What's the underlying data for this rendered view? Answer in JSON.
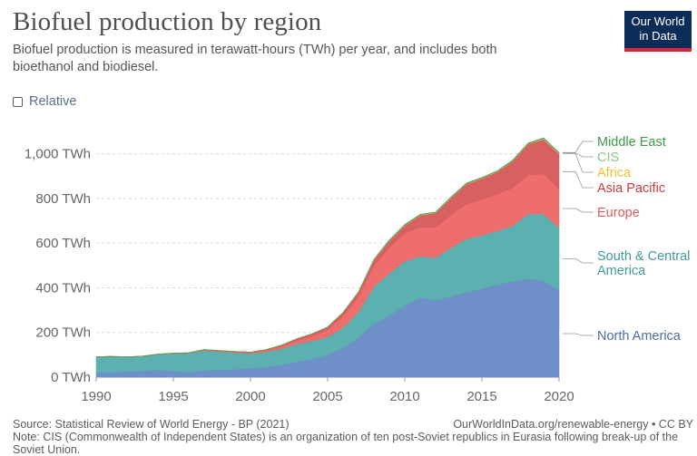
{
  "header": {
    "title": "Biofuel production by region",
    "subtitle": "Biofuel production is measured in terawatt-hours (TWh) per year, and includes both bioethanol and biodiesel."
  },
  "logo": {
    "line1": "Our World",
    "line2": "in Data"
  },
  "controls": {
    "relative_label": "Relative",
    "relative_checked": false
  },
  "footer": {
    "source": "Source: Statistical Review of World Energy - BP (2021)",
    "link": "OurWorldInData.org/renewable-energy • CC BY",
    "note": "Note: CIS (Commonwealth of Independent States) is an organization of ten post-Soviet republics in Eurasia following break-up of the Soviet Union."
  },
  "chart_data": {
    "type": "area",
    "stacked": true,
    "title": "Biofuel production by region",
    "ylabel": "",
    "ylim": [
      0,
      1100
    ],
    "y_ticks": [
      0,
      200,
      400,
      600,
      800,
      1000
    ],
    "y_tick_labels": [
      "0 TWh",
      "200 TWh",
      "400 TWh",
      "600 TWh",
      "800 TWh",
      "1,000 TWh"
    ],
    "x_ticks": [
      1990,
      1995,
      2000,
      2005,
      2010,
      2015,
      2020
    ],
    "x_tick_labels": [
      "1990",
      "1995",
      "2000",
      "2005",
      "2010",
      "2015",
      "2020"
    ],
    "x": [
      1990,
      1991,
      1992,
      1993,
      1994,
      1995,
      1996,
      1997,
      1998,
      1999,
      2000,
      2001,
      2002,
      2003,
      2004,
      2005,
      2006,
      2007,
      2008,
      2009,
      2010,
      2011,
      2012,
      2013,
      2014,
      2015,
      2016,
      2017,
      2018,
      2019,
      2020
    ],
    "series": [
      {
        "name": "North America",
        "color": "#6b8cc7",
        "values": [
          20,
          22,
          25,
          28,
          32,
          28,
          22,
          30,
          32,
          35,
          40,
          45,
          55,
          68,
          82,
          100,
          130,
          180,
          240,
          275,
          320,
          355,
          345,
          360,
          380,
          395,
          415,
          428,
          440,
          430,
          390
        ]
      },
      {
        "name": "South & Central America",
        "color": "#58aeae",
        "values": [
          70,
          70,
          65,
          65,
          70,
          78,
          85,
          90,
          82,
          75,
          65,
          68,
          72,
          80,
          80,
          80,
          92,
          112,
          165,
          190,
          200,
          185,
          190,
          220,
          240,
          240,
          240,
          250,
          290,
          300,
          280
        ]
      },
      {
        "name": "Europe",
        "color": "#ee6a6a",
        "values": [
          0,
          0,
          0,
          0,
          0,
          0,
          1,
          2,
          3,
          3,
          4,
          6,
          10,
          16,
          22,
          32,
          52,
          68,
          95,
          115,
          125,
          130,
          135,
          148,
          155,
          160,
          165,
          170,
          175,
          180,
          170
        ]
      },
      {
        "name": "Asia Pacific",
        "color": "#d65c5c",
        "values": [
          1,
          1,
          1,
          1,
          1,
          1,
          1,
          2,
          2,
          2,
          3,
          4,
          6,
          8,
          10,
          12,
          15,
          20,
          25,
          30,
          35,
          55,
          65,
          75,
          90,
          95,
          100,
          120,
          140,
          155,
          160
        ]
      },
      {
        "name": "Africa",
        "color": "#f2c94c",
        "values": [
          0,
          0,
          0,
          0,
          0,
          0,
          0,
          0,
          0,
          0,
          0,
          0,
          0,
          0,
          0,
          0,
          0,
          1,
          1,
          1,
          1,
          1,
          1,
          1,
          1,
          1,
          1,
          1,
          1,
          2,
          2
        ]
      },
      {
        "name": "CIS",
        "color": "#8cc580",
        "values": [
          0,
          0,
          0,
          0,
          0,
          0,
          0,
          0,
          0,
          0,
          0,
          0,
          0,
          0,
          0,
          1,
          1,
          1,
          2,
          2,
          2,
          2,
          2,
          2,
          2,
          2,
          2,
          2,
          2,
          3,
          3
        ]
      },
      {
        "name": "Middle East",
        "color": "#3d9a48",
        "values": [
          0,
          0,
          0,
          0,
          0,
          0,
          0,
          0,
          0,
          0,
          0,
          0,
          0,
          0,
          0,
          0,
          0,
          0,
          0,
          1,
          1,
          1,
          1,
          1,
          1,
          1,
          1,
          1,
          1,
          1,
          1
        ]
      }
    ],
    "legend": "right, labels at line ends",
    "grid": true
  }
}
